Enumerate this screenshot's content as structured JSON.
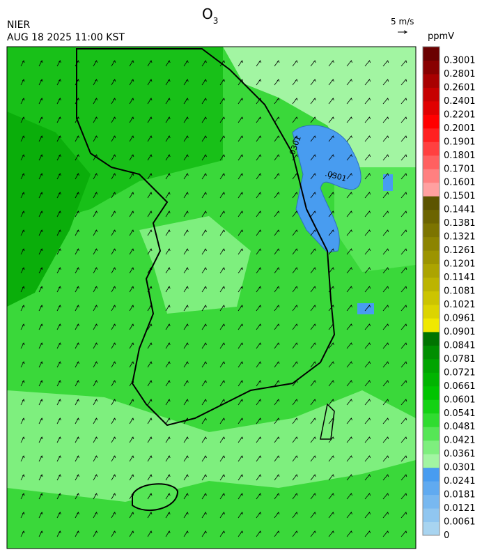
{
  "header": {
    "title": {
      "base": "O",
      "sub": "3"
    },
    "agency": "NIER",
    "datetime": "AUG 18 2025 11:00 KST",
    "reference_vector": "5 m/s"
  },
  "legend": {
    "unit": "ppmV",
    "levels": [
      {
        "value": 0,
        "color": "#a8d4f0"
      },
      {
        "value": 0.0061,
        "color": "#90c6f0"
      },
      {
        "value": 0.0121,
        "color": "#78b8f0"
      },
      {
        "value": 0.0181,
        "color": "#60aaf0"
      },
      {
        "value": 0.0241,
        "color": "#489cf0"
      },
      {
        "value": 0.0301,
        "color": "#a2f5a2"
      },
      {
        "value": 0.0361,
        "color": "#7eef7e"
      },
      {
        "value": 0.0421,
        "color": "#56e656"
      },
      {
        "value": 0.0481,
        "color": "#30dc30"
      },
      {
        "value": 0.0541,
        "color": "#14d214"
      },
      {
        "value": 0.0601,
        "color": "#00c400"
      },
      {
        "value": 0.0661,
        "color": "#00b400"
      },
      {
        "value": 0.0721,
        "color": "#00a400"
      },
      {
        "value": 0.0781,
        "color": "#008e00"
      },
      {
        "value": 0.0841,
        "color": "#007400"
      },
      {
        "value": 0.0901,
        "color": "#f0e800"
      },
      {
        "value": 0.0961,
        "color": "#dcd400"
      },
      {
        "value": 0.1021,
        "color": "#ccc400"
      },
      {
        "value": 0.1081,
        "color": "#bcb400"
      },
      {
        "value": 0.1141,
        "color": "#aca400"
      },
      {
        "value": 0.1201,
        "color": "#9c9400"
      },
      {
        "value": 0.1261,
        "color": "#8c8400"
      },
      {
        "value": 0.1321,
        "color": "#7c7400"
      },
      {
        "value": 0.1381,
        "color": "#6c6400"
      },
      {
        "value": 0.1441,
        "color": "#5c5400"
      },
      {
        "value": 0.1501,
        "color": "#ffa0a0"
      },
      {
        "value": 0.1601,
        "color": "#ff8080"
      },
      {
        "value": 0.1701,
        "color": "#ff6060"
      },
      {
        "value": 0.1801,
        "color": "#ff4040"
      },
      {
        "value": 0.1901,
        "color": "#ff2020"
      },
      {
        "value": 0.2001,
        "color": "#ff0000"
      },
      {
        "value": 0.2201,
        "color": "#e00000"
      },
      {
        "value": 0.2401,
        "color": "#c60000"
      },
      {
        "value": 0.2601,
        "color": "#a80000"
      },
      {
        "value": 0.2801,
        "color": "#880000"
      },
      {
        "value": 0.3001,
        "color": "#6a0000"
      }
    ]
  },
  "contour_labels": [
    ".0301",
    ".0301"
  ]
}
